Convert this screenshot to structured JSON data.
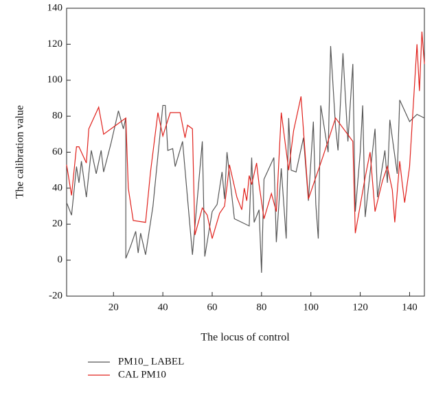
{
  "chart_data": {
    "type": "line",
    "xlabel": "The locus of control",
    "ylabel": "The calibration value",
    "xlim": [
      1,
      146
    ],
    "xticks": [
      20,
      40,
      60,
      80,
      100,
      120,
      140
    ],
    "ylim": [
      -20,
      140
    ],
    "yticks": [
      -20,
      0,
      20,
      40,
      60,
      80,
      100,
      120,
      140
    ],
    "series": [
      {
        "name": "PM10_ LABEL",
        "color": "#555555",
        "x": [
          1,
          3,
          5,
          6,
          7,
          9,
          11,
          13,
          15,
          16,
          19,
          22,
          24,
          25,
          25,
          27,
          29,
          30,
          31,
          33,
          36,
          40,
          41,
          42,
          44,
          45,
          48,
          52,
          56,
          57,
          60,
          62,
          64,
          65,
          66,
          69,
          75,
          76,
          77,
          79,
          80,
          81,
          85,
          86,
          88,
          90,
          91,
          92,
          94,
          97,
          99,
          101,
          102,
          103,
          104,
          107,
          108,
          110,
          111,
          113,
          115,
          117,
          118,
          120,
          121,
          122,
          126,
          127,
          130,
          131,
          132,
          135,
          136,
          140,
          143,
          146
        ],
        "values": [
          32,
          25,
          52,
          43,
          55,
          35,
          61,
          48,
          61,
          49,
          65,
          83,
          73,
          79,
          1,
          8,
          16,
          4,
          15,
          3,
          30,
          86,
          86,
          61,
          62,
          52,
          66,
          3,
          66,
          2,
          27,
          31,
          49,
          34,
          60,
          23,
          19,
          57,
          21,
          28,
          -7,
          45,
          57,
          10,
          51,
          12,
          79,
          50,
          49,
          68,
          33,
          77,
          31,
          12,
          86,
          60,
          119,
          74,
          61,
          115,
          66,
          109,
          27,
          60,
          86,
          24,
          73,
          35,
          61,
          43,
          78,
          48,
          89,
          77,
          81,
          79
        ]
      },
      {
        "name": "CAL PM10",
        "color": "#e0201b",
        "x": [
          1,
          3,
          5,
          6,
          9,
          10,
          14,
          16,
          21,
          25,
          26,
          28,
          33,
          35,
          38,
          40,
          43,
          47,
          49,
          50,
          52,
          53,
          56,
          58,
          60,
          63,
          65,
          66,
          67,
          70,
          72,
          73,
          74,
          75,
          76,
          78,
          79,
          81,
          84,
          86,
          88,
          91,
          93,
          96,
          99,
          105,
          110,
          117,
          118,
          122,
          124,
          126,
          129,
          131,
          133,
          134,
          136,
          137,
          138,
          140,
          143,
          144,
          145,
          146
        ],
        "values": [
          53,
          36,
          63,
          63,
          54,
          73,
          85,
          70,
          75,
          79,
          40,
          22,
          21,
          49,
          82,
          69,
          82,
          82,
          68,
          75,
          73,
          14,
          29,
          25,
          12,
          26,
          30,
          41,
          53,
          35,
          28,
          40,
          33,
          47,
          42,
          54,
          42,
          23,
          37,
          27,
          82,
          50,
          72,
          91,
          34,
          58,
          79,
          66,
          15,
          46,
          60,
          27,
          44,
          52,
          39,
          21,
          55,
          43,
          32,
          52,
          120,
          94,
          127,
          109
        ]
      }
    ]
  }
}
